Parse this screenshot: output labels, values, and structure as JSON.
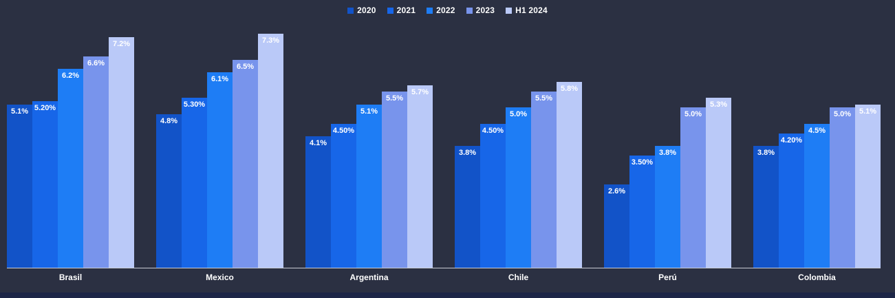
{
  "page": {
    "background_color": "#2b3042",
    "axis_color": "#c9cdd6",
    "text_color": "#ffffff",
    "footer_bar_color": "#1d2647"
  },
  "chart_data": {
    "type": "bar",
    "title": "",
    "xlabel": "",
    "ylabel": "",
    "ylim": [
      0,
      7.5
    ],
    "grid": false,
    "legend_position": "top-center",
    "value_suffix": "%",
    "categories": [
      "Brasil",
      "Mexico",
      "Argentina",
      "Chile",
      "Perú",
      "Colombia"
    ],
    "series": [
      {
        "name": "2020",
        "color": "#1253c8",
        "values": [
          5.1,
          4.8,
          4.1,
          3.8,
          2.6,
          3.8
        ],
        "labels": [
          "5.1%",
          "4.8%",
          "4.1%",
          "3.8%",
          "2.6%",
          "3.8%"
        ]
      },
      {
        "name": "2021",
        "color": "#1766e8",
        "values": [
          5.2,
          5.3,
          4.5,
          4.5,
          3.5,
          4.2
        ],
        "labels": [
          "5.20%",
          "5.30%",
          "4.50%",
          "4.50%",
          "3.50%",
          "4.20%"
        ]
      },
      {
        "name": "2022",
        "color": "#1e7df5",
        "values": [
          6.2,
          6.1,
          5.1,
          5.0,
          3.8,
          4.5
        ],
        "labels": [
          "6.2%",
          "6.1%",
          "5.1%",
          "5.0%",
          "3.8%",
          "4.5%"
        ]
      },
      {
        "name": "2023",
        "color": "#7894ec",
        "values": [
          6.6,
          6.5,
          5.5,
          5.5,
          5.0,
          5.0
        ],
        "labels": [
          "6.6%",
          "6.5%",
          "5.5%",
          "5.5%",
          "5.0%",
          "5.0%"
        ]
      },
      {
        "name": "H1 2024",
        "color": "#bac9f8",
        "values": [
          7.2,
          7.3,
          5.7,
          5.8,
          5.3,
          5.1
        ],
        "labels": [
          "7.2%",
          "7.3%",
          "5.7%",
          "5.8%",
          "5.3%",
          "5.1%"
        ]
      }
    ]
  }
}
